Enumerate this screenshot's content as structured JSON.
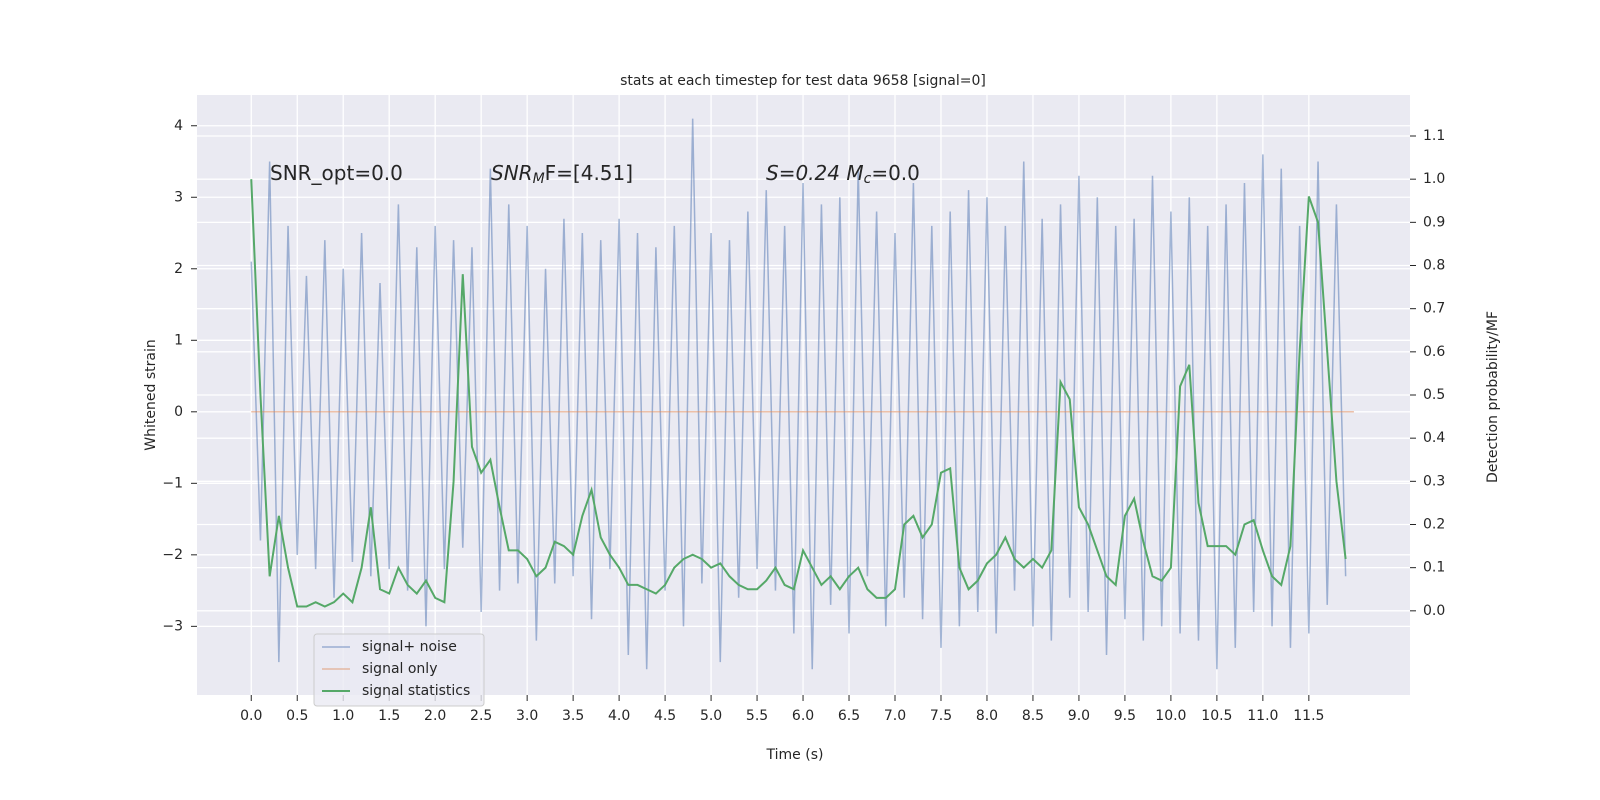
{
  "chart_data": {
    "type": "line",
    "title": "stats at each timestep for test data 9658 [signal=0]",
    "xlabel": "Time (s)",
    "ylabel": "Whitened strain",
    "y2label": "Detection probability/MF",
    "annotations": [
      [
        "SNR_opt=0.0"
      ],
      [
        "SNR",
        "M",
        "F=[4.51]"
      ],
      [
        "S=0.24   M",
        "c",
        "=0.0"
      ]
    ],
    "xlim": [
      -0.59,
      12.6
    ],
    "ylim": [
      -3.96,
      4.43
    ],
    "y2lim": [
      -0.195,
      1.195
    ],
    "xticks": [
      {
        "value": 0,
        "label": "0.0"
      },
      {
        "value": 0.5,
        "label": "0.5"
      },
      {
        "value": 1,
        "label": "1.0"
      },
      {
        "value": 1.5,
        "label": "1.5"
      },
      {
        "value": 2,
        "label": "2.0"
      },
      {
        "value": 2.5,
        "label": "2.5"
      },
      {
        "value": 3,
        "label": "3.0"
      },
      {
        "value": 3.5,
        "label": "3.5"
      },
      {
        "value": 4,
        "label": "4.0"
      },
      {
        "value": 4.5,
        "label": "4.5"
      },
      {
        "value": 5,
        "label": "5.0"
      },
      {
        "value": 5.5,
        "label": "5.5"
      },
      {
        "value": 6,
        "label": "6.0"
      },
      {
        "value": 6.5,
        "label": "6.5"
      },
      {
        "value": 7,
        "label": "7.0"
      },
      {
        "value": 7.5,
        "label": "7.5"
      },
      {
        "value": 8,
        "label": "8.0"
      },
      {
        "value": 8.5,
        "label": "8.5"
      },
      {
        "value": 9,
        "label": "9.0"
      },
      {
        "value": 9.5,
        "label": "9.5"
      },
      {
        "value": 10,
        "label": "10.0"
      },
      {
        "value": 10.5,
        "label": "10.5"
      },
      {
        "value": 11,
        "label": "11.0"
      },
      {
        "value": 11.5,
        "label": "11.5"
      }
    ],
    "yticks": [
      {
        "value": -3,
        "label": "−3"
      },
      {
        "value": -2,
        "label": "−2"
      },
      {
        "value": -1,
        "label": "−1"
      },
      0,
      1,
      2,
      3,
      4
    ],
    "y2ticks": [
      {
        "value": 0,
        "label": "0.0"
      },
      {
        "value": 0.1,
        "label": "0.1"
      },
      {
        "value": 0.2,
        "label": "0.2"
      },
      {
        "value": 0.3,
        "label": "0.3"
      },
      {
        "value": 0.4,
        "label": "0.4"
      },
      {
        "value": 0.5,
        "label": "0.5"
      },
      {
        "value": 0.6,
        "label": "0.6"
      },
      {
        "value": 0.7,
        "label": "0.7"
      },
      {
        "value": 0.8,
        "label": "0.8"
      },
      {
        "value": 0.9,
        "label": "0.9"
      },
      {
        "value": 1,
        "label": "1.0"
      },
      {
        "value": 1.1,
        "label": "1.1"
      }
    ],
    "grid": true,
    "legend": "lower left",
    "series": [
      {
        "name": "signal+ noise",
        "color": "#4c72b0",
        "x": [
          0,
          0.1,
          0.2,
          0.3,
          0.4,
          0.5,
          0.6,
          0.7,
          0.8,
          0.9,
          1,
          1.1,
          1.2,
          1.3,
          1.4,
          1.5,
          1.6,
          1.7,
          1.8,
          1.9,
          2,
          2.1,
          2.2,
          2.3,
          2.4,
          2.5,
          2.6,
          2.7,
          2.8,
          2.9,
          3,
          3.1,
          3.2,
          3.3,
          3.4,
          3.5,
          3.6,
          3.7,
          3.8,
          3.9,
          4,
          4.1,
          4.2,
          4.3,
          4.4,
          4.5,
          4.6,
          4.7,
          4.8,
          4.9,
          5,
          5.1,
          5.2,
          5.3,
          5.4,
          5.5,
          5.6,
          5.7,
          5.8,
          5.9,
          6,
          6.1,
          6.2,
          6.3,
          6.4,
          6.5,
          6.6,
          6.7,
          6.8,
          6.9,
          7,
          7.1,
          7.2,
          7.3,
          7.4,
          7.5,
          7.6,
          7.7,
          7.8,
          7.9,
          8,
          8.1,
          8.2,
          8.3,
          8.4,
          8.5,
          8.6,
          8.7,
          8.8,
          8.9,
          9,
          9.1,
          9.2,
          9.3,
          9.4,
          9.5,
          9.6,
          9.7,
          9.8,
          9.9,
          10,
          10.1,
          10.2,
          10.3,
          10.4,
          10.5,
          10.6,
          10.7,
          10.8,
          10.9,
          11,
          11.1,
          11.2,
          11.3,
          11.4,
          11.5,
          11.6,
          11.7,
          11.8,
          11.9
        ],
        "values": [
          2.1,
          -1.8,
          3.5,
          -3.5,
          2.6,
          -2.0,
          1.9,
          -2.2,
          2.4,
          -2.6,
          2.0,
          -2.1,
          2.5,
          -2.3,
          1.8,
          -2.2,
          2.9,
          -2.5,
          2.3,
          -3.0,
          2.6,
          -2.2,
          2.4,
          -1.9,
          2.3,
          -2.8,
          3.4,
          -2.5,
          2.9,
          -2.4,
          2.6,
          -3.2,
          2.0,
          -2.4,
          2.7,
          -2.3,
          2.5,
          -2.9,
          2.4,
          -2.2,
          2.7,
          -3.4,
          2.5,
          -3.6,
          2.3,
          -2.5,
          2.6,
          -3.0,
          4.1,
          -2.4,
          2.5,
          -3.5,
          2.4,
          -2.6,
          2.8,
          -2.2,
          3.1,
          -2.5,
          2.6,
          -3.1,
          3.2,
          -3.6,
          2.9,
          -2.7,
          3.0,
          -3.1,
          3.4,
          -2.3,
          2.8,
          -3.0,
          2.5,
          -2.6,
          3.2,
          -2.9,
          2.6,
          -3.3,
          2.8,
          -3.0,
          3.1,
          -2.8,
          3.0,
          -3.1,
          2.6,
          -2.5,
          3.5,
          -3.0,
          2.7,
          -3.2,
          2.9,
          -2.6,
          3.3,
          -2.8,
          3.0,
          -3.4,
          2.6,
          -2.9,
          2.7,
          -3.2,
          3.3,
          -3.0,
          2.8,
          -3.1,
          3.0,
          -3.2,
          2.6,
          -3.6,
          2.9,
          -3.3,
          3.2,
          -2.8,
          3.6,
          -3.0,
          3.4,
          -3.3,
          2.6,
          -3.1,
          3.5,
          -2.7,
          2.9,
          -2.3
        ]
      },
      {
        "name": "signal only",
        "color": "#dd8452",
        "x": [
          0,
          11.99
        ],
        "values": [
          0,
          0
        ]
      },
      {
        "name": "signal statistics",
        "color": "#55a868",
        "axis": "y2",
        "x": [
          0,
          0.1,
          0.2,
          0.3,
          0.4,
          0.5,
          0.6,
          0.7,
          0.8,
          0.9,
          1,
          1.1,
          1.2,
          1.3,
          1.4,
          1.5,
          1.6,
          1.7,
          1.8,
          1.9,
          2,
          2.1,
          2.2,
          2.3,
          2.4,
          2.5,
          2.6,
          2.7,
          2.8,
          2.9,
          3,
          3.1,
          3.2,
          3.3,
          3.4,
          3.5,
          3.6,
          3.7,
          3.8,
          3.9,
          4,
          4.1,
          4.2,
          4.3,
          4.4,
          4.5,
          4.6,
          4.7,
          4.8,
          4.9,
          5,
          5.1,
          5.2,
          5.3,
          5.4,
          5.5,
          5.6,
          5.7,
          5.8,
          5.9,
          6,
          6.1,
          6.2,
          6.3,
          6.4,
          6.5,
          6.6,
          6.7,
          6.8,
          6.9,
          7,
          7.1,
          7.2,
          7.3,
          7.4,
          7.5,
          7.6,
          7.7,
          7.8,
          7.9,
          8,
          8.1,
          8.2,
          8.3,
          8.4,
          8.5,
          8.6,
          8.7,
          8.8,
          8.9,
          9,
          9.1,
          9.2,
          9.3,
          9.4,
          9.5,
          9.6,
          9.7,
          9.8,
          9.9,
          10,
          10.1,
          10.2,
          10.3,
          10.4,
          10.5,
          10.6,
          10.7,
          10.8,
          10.9,
          11,
          11.1,
          11.2,
          11.3,
          11.4,
          11.5,
          11.6,
          11.7,
          11.8,
          11.9
        ],
        "values": [
          1.0,
          0.5,
          0.08,
          0.22,
          0.1,
          0.01,
          0.01,
          0.02,
          0.01,
          0.02,
          0.04,
          0.02,
          0.1,
          0.24,
          0.05,
          0.04,
          0.1,
          0.06,
          0.04,
          0.07,
          0.03,
          0.02,
          0.3,
          0.78,
          0.38,
          0.32,
          0.35,
          0.24,
          0.14,
          0.14,
          0.12,
          0.08,
          0.1,
          0.16,
          0.15,
          0.13,
          0.22,
          0.28,
          0.17,
          0.13,
          0.1,
          0.06,
          0.06,
          0.05,
          0.04,
          0.06,
          0.1,
          0.12,
          0.13,
          0.12,
          0.1,
          0.11,
          0.08,
          0.06,
          0.05,
          0.05,
          0.07,
          0.1,
          0.06,
          0.05,
          0.14,
          0.1,
          0.06,
          0.08,
          0.05,
          0.08,
          0.1,
          0.05,
          0.03,
          0.03,
          0.05,
          0.2,
          0.22,
          0.17,
          0.2,
          0.32,
          0.33,
          0.1,
          0.05,
          0.07,
          0.11,
          0.13,
          0.17,
          0.12,
          0.1,
          0.12,
          0.1,
          0.14,
          0.53,
          0.49,
          0.24,
          0.2,
          0.14,
          0.08,
          0.06,
          0.22,
          0.26,
          0.16,
          0.08,
          0.07,
          0.1,
          0.52,
          0.57,
          0.25,
          0.15,
          0.15,
          0.15,
          0.13,
          0.2,
          0.21,
          0.14,
          0.08,
          0.06,
          0.15,
          0.6,
          0.96,
          0.9,
          0.6,
          0.3,
          0.12
        ]
      }
    ]
  }
}
